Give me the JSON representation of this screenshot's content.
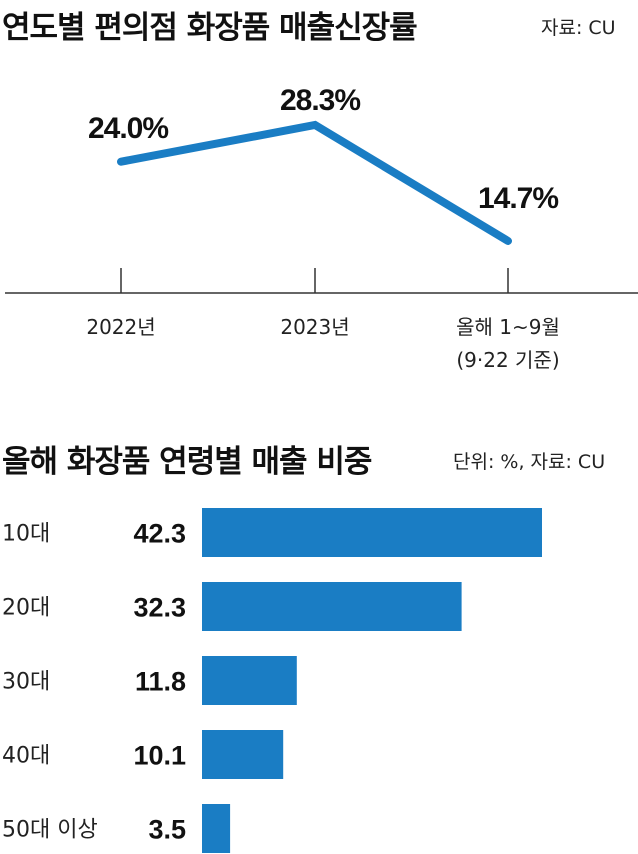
{
  "chart_data": [
    {
      "type": "line",
      "title": "연도별 편의점 화장품 매출신장률",
      "source": "자료: CU",
      "categories": [
        "2022년",
        "2023년",
        "올해 1~9월"
      ],
      "category_notes": [
        "",
        "",
        "(9·22 기준)"
      ],
      "values": [
        24.0,
        28.3,
        14.7
      ],
      "value_labels": [
        "24.0%",
        "28.3%",
        "14.7%"
      ],
      "unit": "%",
      "color": "#1a7dc4",
      "xlabel": "",
      "ylabel": "",
      "ylim": [
        10,
        30
      ],
      "grid": false
    },
    {
      "type": "bar",
      "orientation": "horizontal",
      "title": "올해 화장품 연령별 매출 비중",
      "source": "단위: %, 자료: CU",
      "categories": [
        "10대",
        "20대",
        "30대",
        "40대",
        "50대 이상"
      ],
      "values": [
        42.3,
        32.3,
        11.8,
        10.1,
        3.5
      ],
      "value_labels": [
        "42.3",
        "32.3",
        "11.8",
        "10.1",
        "3.5"
      ],
      "color": "#1a7dc4",
      "xlim": [
        0,
        42.3
      ],
      "grid": false
    }
  ]
}
